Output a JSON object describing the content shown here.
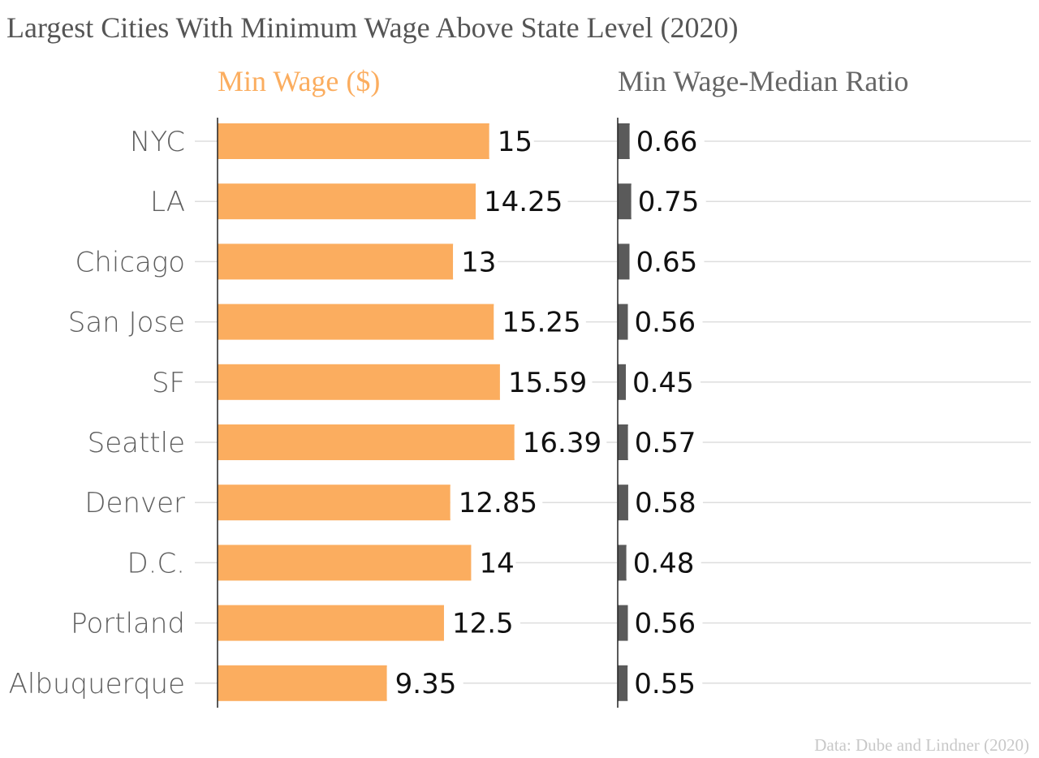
{
  "chart_data": {
    "type": "bar",
    "title": "Largest Cities With Minimum Wage Above State Level (2020)",
    "source": "Data: Dube and Lindner (2020)",
    "categories": [
      "NYC",
      "LA",
      "Chicago",
      "San Jose",
      "SF",
      "Seattle",
      "Denver",
      "D.C.",
      "Portland",
      "Albuquerque"
    ],
    "series": [
      {
        "name": "Min Wage ($)",
        "color": "#fbad5f",
        "values": [
          15,
          14.25,
          13,
          15.25,
          15.59,
          16.39,
          12.85,
          14,
          12.5,
          9.35
        ],
        "labels": [
          "15",
          "14.25",
          "13",
          "15.25",
          "15.59",
          "16.39",
          "12.85",
          "14",
          "12.5",
          "9.35"
        ],
        "xlim": [
          0,
          22
        ]
      },
      {
        "name": "Min Wage-Median Ratio",
        "color": "#5a5a5a",
        "values": [
          0.66,
          0.75,
          0.65,
          0.56,
          0.45,
          0.57,
          0.58,
          0.48,
          0.56,
          0.55
        ],
        "labels": [
          "0.66",
          "0.75",
          "0.65",
          "0.56",
          "0.45",
          "0.57",
          "0.58",
          "0.48",
          "0.56",
          "0.55"
        ],
        "xlim": [
          0,
          22
        ]
      }
    ],
    "grid": true,
    "legend": "column-headers"
  }
}
